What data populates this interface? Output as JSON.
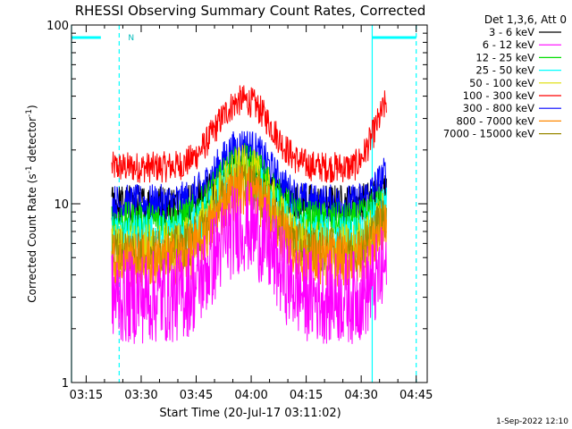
{
  "chart_data": {
    "type": "line",
    "title": "RHESSI Observing Summary Count Rates, Corrected",
    "xlabel": "Start Time (20-Jul-17 03:11:02)",
    "ylabel_main": "Corrected Count Rate (s",
    "ylabel_sup1": "-1",
    "ylabel_mid": " detector",
    "ylabel_sup2": "-1",
    "ylabel_end": ")",
    "y_scale": "log",
    "ylim": [
      1,
      100
    ],
    "xlim": [
      "03:11",
      "04:48"
    ],
    "x_ticks": [
      "03:15",
      "03:30",
      "03:45",
      "04:00",
      "04:15",
      "04:30",
      "04:45"
    ],
    "y_ticks": [
      "1",
      "10",
      "100"
    ],
    "legend_title": "Det 1,3,6, Att 0",
    "legend_placement": "right",
    "timestamp": "1-Sep-2022 12:10",
    "marker_label": "N",
    "series": [
      {
        "name": "3 - 6 keV",
        "color": "#000000",
        "base": 10,
        "peak": 15,
        "late": 12,
        "noise": 0.05
      },
      {
        "name": "6 - 12 keV",
        "color": "#ff00ff",
        "base": 3,
        "peak": 7.5,
        "late": 4.5,
        "noise": 0.12
      },
      {
        "name": "12 - 25 keV",
        "color": "#00dd00",
        "base": 8,
        "peak": 17,
        "late": 11,
        "noise": 0.05
      },
      {
        "name": "25 - 50 keV",
        "color": "#00ffff",
        "base": 6.5,
        "peak": 14,
        "late": 10,
        "noise": 0.06
      },
      {
        "name": "50 - 100 keV",
        "color": "#dddd00",
        "base": 5.5,
        "peak": 15,
        "late": 9,
        "noise": 0.07
      },
      {
        "name": "100 - 300 keV",
        "color": "#ff0000",
        "base": 16,
        "peak": 38,
        "late": 38,
        "noise": 0.04
      },
      {
        "name": "300 - 800 keV",
        "color": "#0000ff",
        "base": 10,
        "peak": 21,
        "late": 15,
        "noise": 0.05
      },
      {
        "name": "800 - 7000 keV",
        "color": "#ff8800",
        "base": 4.8,
        "peak": 12,
        "late": 8,
        "noise": 0.07
      },
      {
        "name": "7000 - 15000 keV",
        "color": "#998800",
        "base": 5.5,
        "peak": 13,
        "late": 9,
        "noise": 0.06
      }
    ],
    "data_start": "03:22",
    "data_end": "04:37",
    "peak_time": "03:58",
    "flag_segments": [
      [
        "03:11",
        "03:19"
      ],
      [
        "04:33",
        "04:45"
      ]
    ],
    "solid_markers": [
      "03:11",
      "04:33"
    ],
    "dashed_markers": [
      "03:24",
      "04:45"
    ]
  }
}
